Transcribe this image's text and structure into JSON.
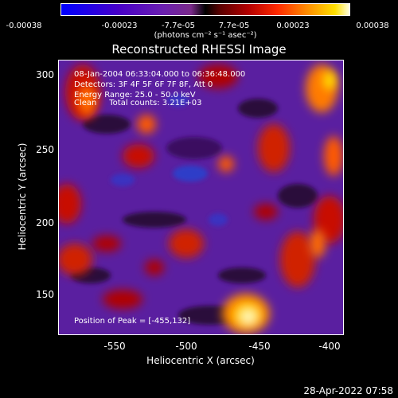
{
  "colorbar": {
    "ticks": [
      "-0.00038",
      "-0.00023",
      "-7.7e-05",
      "7.7e-05",
      "0.00023",
      "0.00038"
    ],
    "units": "(photons cm⁻² s⁻¹ asec⁻²)"
  },
  "title": "Reconstructed RHESSI Image",
  "annotations": {
    "line1": "08-Jan-2004 06:33:04.000 to 06:36:48.000",
    "line2": "Detectors: 3F 4F 5F 6F 7F 8F, Att 0",
    "line3": "Energy Range: 25.0 - 50.0 keV",
    "line4": "Clean     Total counts: 3.21E+03",
    "peak": "Position of Peak = [-455,132]"
  },
  "axes": {
    "xlabel": "Heliocentric X (arcsec)",
    "ylabel": "Heliocentric Y (arcsec)",
    "xticks": [
      "-550",
      "-500",
      "-450",
      "-400"
    ],
    "yticks": [
      "300",
      "250",
      "200",
      "150"
    ]
  },
  "footer": "28-Apr-2022 07:58",
  "colors": {
    "blue": "#0000ff",
    "purple": "#6a1fb0",
    "red": "#ff2a00",
    "yellow": "#ffe000"
  }
}
